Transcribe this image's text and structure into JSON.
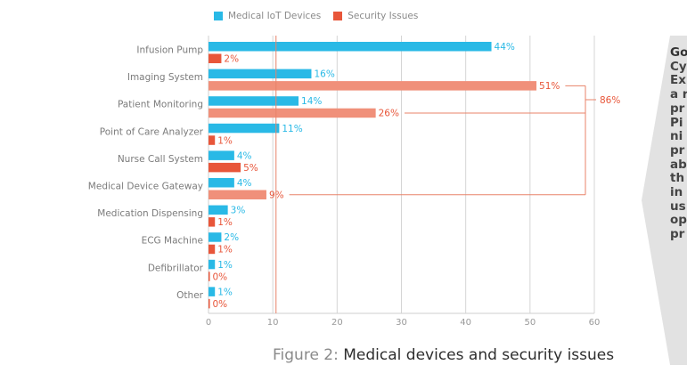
{
  "legend": [
    {
      "label": "Medical IoT Devices",
      "color": "#29b9e6"
    },
    {
      "label": "Security Issues",
      "color": "#e8563a"
    }
  ],
  "caption": {
    "prefix": "Figure 2:",
    "title": "Medical devices and security issues"
  },
  "side_text": {
    "lines": [
      "Go",
      "Cy",
      "Ex",
      "a r",
      "pr",
      "Pi",
      "ni",
      "pr",
      "ab",
      "th",
      "in",
      "us",
      "op",
      "pr"
    ]
  },
  "chart_data": {
    "type": "bar",
    "orientation": "horizontal",
    "title": "Medical devices and security issues",
    "xlabel": "",
    "ylabel": "",
    "xlim": [
      0,
      60
    ],
    "xticks": [
      0,
      10,
      20,
      30,
      40,
      50,
      60
    ],
    "grid": true,
    "legend_position": "top",
    "categories": [
      "Infusion Pump",
      "Imaging System",
      "Patient Monitoring",
      "Point of Care Analyzer",
      "Nurse Call System",
      "Medical Device Gateway",
      "Medication Dispensing",
      "ECG Machine",
      "Defibrillator",
      "Other"
    ],
    "series": [
      {
        "name": "Medical IoT Devices",
        "color": "#29b9e6",
        "values": [
          44,
          16,
          14,
          11,
          4,
          4,
          3,
          2,
          1,
          1
        ],
        "labels": [
          "44%",
          "16%",
          "14%",
          "11%",
          "4%",
          "4%",
          "3%",
          "2%",
          "1%",
          "1%"
        ]
      },
      {
        "name": "Security Issues",
        "color": "#e8563a",
        "highlight_color": "#f0907a",
        "values": [
          2,
          51,
          26,
          1,
          5,
          9,
          1,
          1,
          0,
          0
        ],
        "labels": [
          "2%",
          "51%",
          "26%",
          "1%",
          "5%",
          "9%",
          "1%",
          "1%",
          "0%",
          "0%"
        ],
        "highlighted": [
          false,
          true,
          true,
          false,
          false,
          true,
          false,
          false,
          false,
          false
        ]
      }
    ],
    "annotations": [
      {
        "type": "bracket",
        "groups": [
          "Imaging System",
          "Patient Monitoring",
          "Medical Device Gateway"
        ],
        "label": "86%"
      },
      {
        "type": "reference-line",
        "x": 10.5
      }
    ]
  }
}
